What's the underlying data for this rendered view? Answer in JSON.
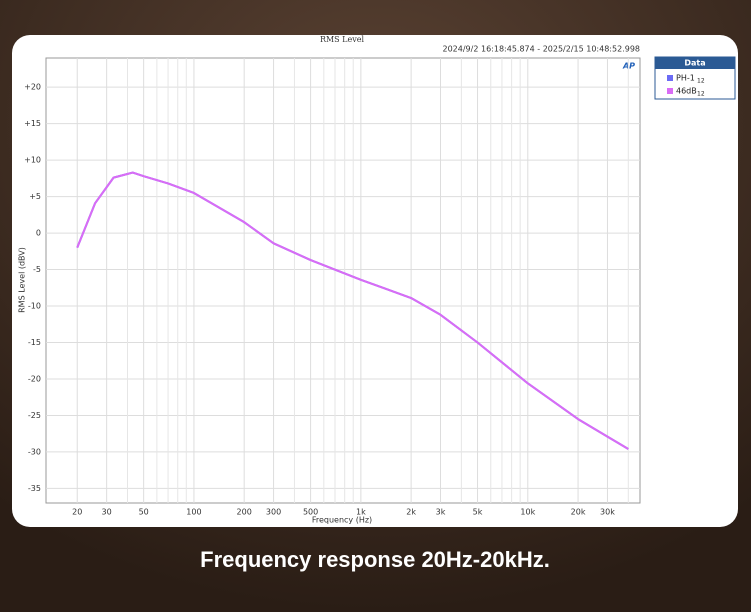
{
  "chart_data": {
    "type": "line",
    "title": "RMS Level",
    "subtitle": "2024/9/2 16:18:45.874 -   2025/2/15 10:48:52.998",
    "caption": "Frequency response 20Hz-20kHz.",
    "logo": "AP",
    "legend_title": "Data",
    "x_label": "Frequency (Hz)",
    "y_label": "RMS Level (dBV)",
    "x_scale": "log",
    "grid": true,
    "x": [
      20,
      25.6,
      33,
      43,
      50,
      70,
      100,
      200,
      300,
      500,
      1000,
      2000,
      3000,
      5000,
      10000,
      20000,
      30000,
      40000
    ],
    "series": [
      {
        "name": "PH-1",
        "channel": "12",
        "color": "#6b6bf5",
        "values": [
          -2,
          4.1,
          7.6,
          8.3,
          7.8,
          6.8,
          5.5,
          1.5,
          -1.4,
          -3.7,
          -6.4,
          -8.9,
          -11.2,
          -15,
          -20.6,
          -25.5,
          -27.9,
          -29.6
        ]
      },
      {
        "name": "46dB",
        "channel": "12",
        "color": "#d96cf5",
        "values": [
          -2,
          4.1,
          7.6,
          8.3,
          7.8,
          6.8,
          5.5,
          1.5,
          -1.4,
          -3.7,
          -6.4,
          -8.9,
          -11.2,
          -15,
          -20.6,
          -25.5,
          -27.9,
          -29.6
        ]
      }
    ],
    "xlim": [
      13,
      47000
    ],
    "xticks": [
      20,
      30,
      50,
      100,
      200,
      300,
      500,
      {
        "value": 1000,
        "label": "1k"
      },
      {
        "value": 2000,
        "label": "2k"
      },
      {
        "value": 3000,
        "label": "3k"
      },
      {
        "value": 5000,
        "label": "5k"
      },
      {
        "value": 10000,
        "label": "10k"
      },
      {
        "value": 20000,
        "label": "20k"
      },
      {
        "value": 30000,
        "label": "30k"
      }
    ],
    "xminor": [
      40,
      60,
      70,
      80,
      90,
      400,
      600,
      700,
      800,
      900,
      4000,
      6000,
      7000,
      8000,
      9000,
      40000
    ],
    "ylim": [
      -37,
      24
    ],
    "yticks": [
      {
        "value": 20,
        "label": "+20"
      },
      {
        "value": 15,
        "label": "+15"
      },
      {
        "value": 10,
        "label": "+10"
      },
      {
        "value": 5,
        "label": "+5"
      },
      0,
      -5,
      -10,
      -15,
      -20,
      -25,
      -30,
      -35
    ]
  }
}
